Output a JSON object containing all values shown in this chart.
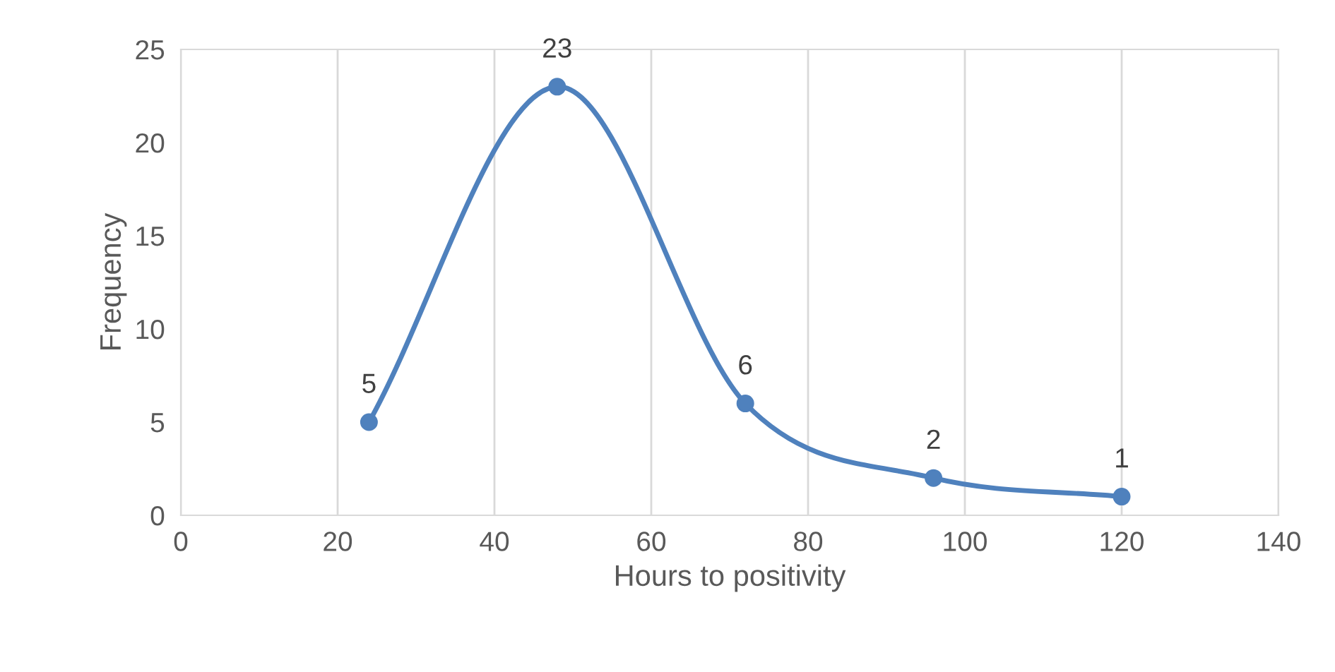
{
  "chart_data": {
    "type": "line",
    "xlabel": "Hours to positivity",
    "ylabel": "Frequency",
    "x": [
      24,
      48,
      72,
      96,
      120
    ],
    "series": [
      {
        "color": "#4f81bd",
        "values": [
          5,
          23,
          6,
          2,
          1
        ]
      }
    ],
    "xlim": [
      0,
      140
    ],
    "xticks": [
      0,
      20,
      40,
      60,
      80,
      100,
      120,
      140
    ],
    "ylim": [
      0,
      25
    ],
    "yticks": [
      0,
      5,
      10,
      15,
      20,
      25
    ],
    "grid": "x",
    "marker": "circle",
    "line_style": "solid",
    "data_labels": true
  }
}
